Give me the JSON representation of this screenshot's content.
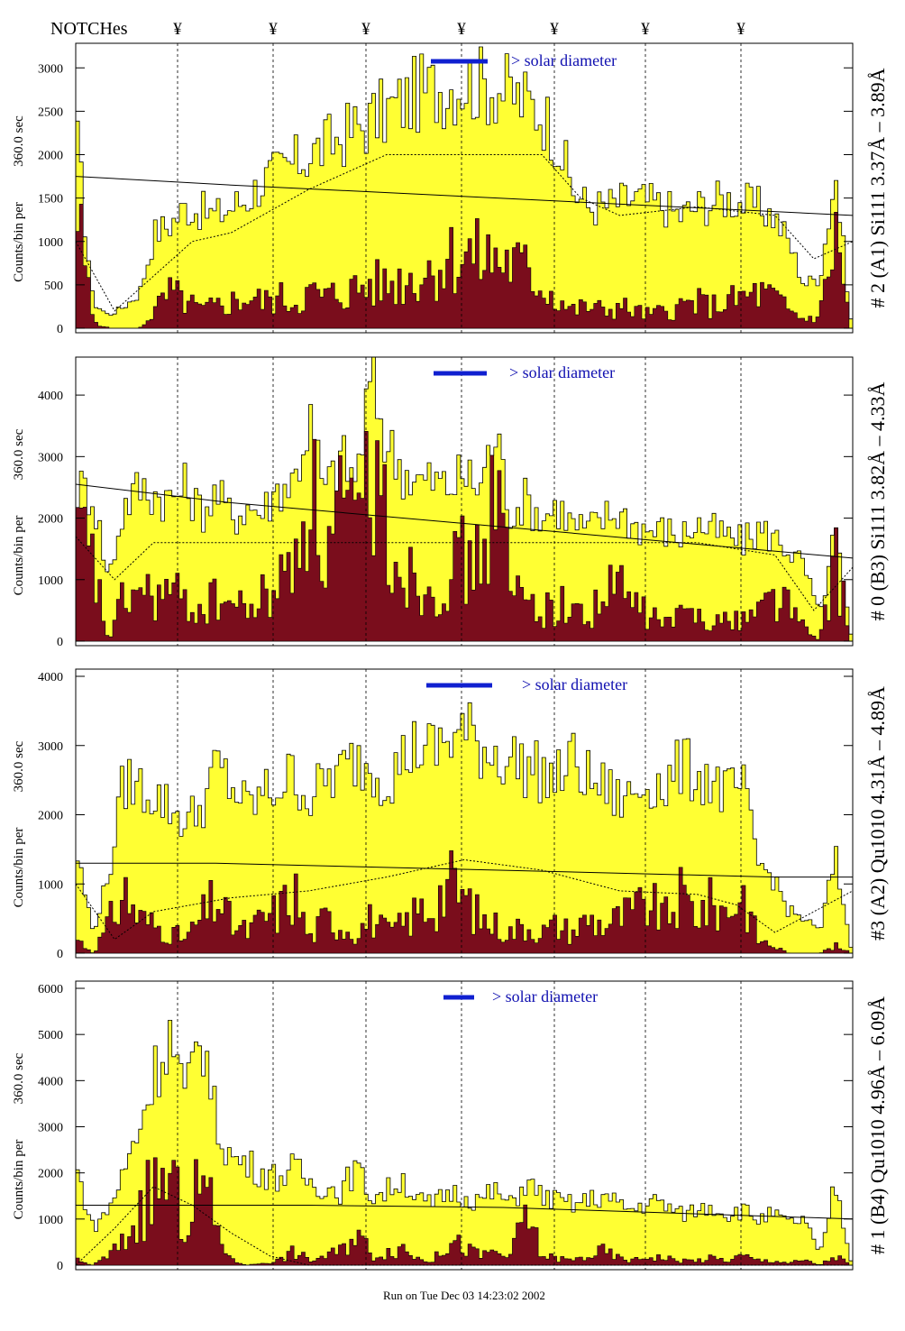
{
  "header": {
    "notches_label": "NOTCHes",
    "notch_mark": "¥",
    "notch_count": 7
  },
  "footer": {
    "run_text": "Run on Tue Dec 03 14:23:02 2002"
  },
  "colors": {
    "total_fill": "#ffff33",
    "component_fill": "#7a0d1c",
    "legend_bar": "#1020d0",
    "legend_text": "#1010b0"
  },
  "chart_data": [
    {
      "type": "bar",
      "panel_label": "# 2 (A1) Si111  3.37Å – 3.89Å",
      "ylabel_main": "Counts/bin per",
      "ylabel_sub": "360.0 sec",
      "ylim": [
        0,
        3200
      ],
      "yticks": [
        0,
        500,
        1000,
        1500,
        2000,
        2500,
        3000
      ],
      "legend_text": "> solar diameter",
      "series": [
        {
          "name": "",
          "x": [
            0,
            0.02,
            0.04,
            0.06,
            0.08,
            0.1,
            0.12,
            0.14,
            0.16,
            0.18,
            0.2,
            0.22,
            0.24,
            0.26,
            0.28,
            0.3,
            0.32,
            0.34,
            0.36,
            0.38,
            0.4,
            0.42,
            0.44,
            0.46,
            0.48,
            0.5,
            0.52,
            0.54,
            0.56,
            0.58,
            0.6,
            0.62,
            0.64,
            0.66,
            0.68,
            0.7,
            0.72,
            0.74,
            0.76,
            0.78,
            0.8,
            0.82,
            0.84,
            0.86,
            0.88,
            0.9,
            0.92,
            0.94,
            0.96,
            0.98,
            1.0
          ],
          "values": [
            2100,
            300,
            150,
            250,
            400,
            1100,
            1200,
            1400,
            1350,
            1300,
            1400,
            1500,
            1700,
            1800,
            1900,
            2000,
            2100,
            2200,
            2300,
            2400,
            2500,
            2600,
            2700,
            2750,
            2800,
            2850,
            2800,
            2800,
            2700,
            2600,
            2500,
            2200,
            1600,
            1400,
            1400,
            1450,
            1500,
            1450,
            1400,
            1300,
            1400,
            1450,
            1500,
            1450,
            1400,
            1300,
            1000,
            500,
            600,
            1800,
            100
          ]
        },
        {
          "name": "",
          "x": [
            0,
            0.02,
            0.04,
            0.06,
            0.08,
            0.1,
            0.12,
            0.14,
            0.16,
            0.18,
            0.2,
            0.22,
            0.24,
            0.26,
            0.28,
            0.3,
            0.32,
            0.34,
            0.36,
            0.38,
            0.4,
            0.42,
            0.44,
            0.46,
            0.48,
            0.5,
            0.52,
            0.54,
            0.56,
            0.58,
            0.6,
            0.62,
            0.64,
            0.66,
            0.68,
            0.7,
            0.72,
            0.74,
            0.76,
            0.78,
            0.8,
            0.82,
            0.84,
            0.86,
            0.88,
            0.9,
            0.92,
            0.94,
            0.96,
            0.98,
            1.0
          ],
          "values": [
            1250,
            100,
            0,
            0,
            0,
            200,
            400,
            300,
            200,
            250,
            300,
            350,
            300,
            350,
            300,
            400,
            350,
            400,
            450,
            500,
            500,
            550,
            600,
            700,
            800,
            850,
            800,
            800,
            750,
            650,
            500,
            350,
            200,
            250,
            200,
            250,
            200,
            150,
            200,
            250,
            300,
            250,
            300,
            350,
            400,
            350,
            200,
            100,
            150,
            1100,
            0
          ]
        }
      ],
      "baseline": {
        "name": "",
        "x": [
          0,
          0.2,
          1.0
        ],
        "values": [
          1750,
          1650,
          1300
        ]
      },
      "model": {
        "name": "",
        "x": [
          0,
          0.05,
          0.1,
          0.15,
          0.2,
          0.3,
          0.4,
          0.5,
          0.6,
          0.65,
          0.7,
          0.8,
          0.9,
          0.95,
          1.0
        ],
        "values": [
          1000,
          200,
          600,
          1000,
          1100,
          1600,
          2000,
          2000,
          2000,
          1500,
          1300,
          1400,
          1300,
          800,
          1000
        ]
      }
    },
    {
      "type": "bar",
      "panel_label": "# 0 (B3) Si111  3.82Å – 4.33Å",
      "ylabel_main": "Counts/bin per",
      "ylabel_sub": "360.0 sec",
      "ylim": [
        0,
        4500
      ],
      "yticks": [
        0,
        1000,
        2000,
        3000,
        4000
      ],
      "legend_text": "> solar diameter",
      "series": [
        {
          "name": "",
          "x": [
            0,
            0.02,
            0.04,
            0.06,
            0.08,
            0.1,
            0.12,
            0.14,
            0.16,
            0.18,
            0.2,
            0.22,
            0.24,
            0.26,
            0.28,
            0.3,
            0.32,
            0.34,
            0.36,
            0.38,
            0.4,
            0.42,
            0.44,
            0.46,
            0.48,
            0.5,
            0.52,
            0.54,
            0.56,
            0.58,
            0.6,
            0.62,
            0.64,
            0.66,
            0.68,
            0.7,
            0.72,
            0.74,
            0.76,
            0.78,
            0.8,
            0.82,
            0.84,
            0.86,
            0.88,
            0.9,
            0.92,
            0.94,
            0.96,
            0.98,
            1.0
          ],
          "values": [
            2500,
            2400,
            1000,
            2200,
            2500,
            2400,
            2300,
            2500,
            2100,
            2400,
            2000,
            2200,
            2100,
            2500,
            2600,
            3600,
            2400,
            3000,
            2600,
            4300,
            3200,
            2800,
            2600,
            2600,
            2500,
            2700,
            2500,
            3400,
            2100,
            2300,
            2000,
            2200,
            1900,
            1800,
            2000,
            2100,
            1900,
            1800,
            1800,
            1700,
            1900,
            1800,
            1700,
            1600,
            1800,
            1700,
            1500,
            1200,
            400,
            1800,
            100
          ]
        },
        {
          "name": "",
          "x": [
            0,
            0.02,
            0.04,
            0.06,
            0.08,
            0.1,
            0.12,
            0.14,
            0.16,
            0.18,
            0.2,
            0.22,
            0.24,
            0.26,
            0.28,
            0.3,
            0.32,
            0.34,
            0.36,
            0.38,
            0.4,
            0.42,
            0.44,
            0.46,
            0.48,
            0.5,
            0.52,
            0.54,
            0.56,
            0.58,
            0.6,
            0.62,
            0.64,
            0.66,
            0.68,
            0.7,
            0.72,
            0.74,
            0.76,
            0.78,
            0.8,
            0.82,
            0.84,
            0.86,
            0.88,
            0.9,
            0.92,
            0.94,
            0.96,
            0.98,
            1.0
          ],
          "values": [
            1800,
            1200,
            0,
            700,
            800,
            700,
            800,
            600,
            500,
            700,
            600,
            500,
            700,
            900,
            1300,
            2800,
            1200,
            2200,
            1500,
            3000,
            1800,
            1200,
            1000,
            900,
            1100,
            1300,
            1200,
            2600,
            800,
            700,
            500,
            600,
            500,
            400,
            700,
            900,
            600,
            400,
            300,
            400,
            500,
            400,
            300,
            400,
            500,
            800,
            600,
            200,
            0,
            1400,
            0
          ]
        }
      ],
      "baseline": {
        "name": "",
        "x": [
          0,
          0.2,
          1.0
        ],
        "values": [
          2550,
          2250,
          1350
        ]
      },
      "model": {
        "name": "",
        "x": [
          0,
          0.05,
          0.1,
          0.2,
          0.3,
          0.4,
          0.5,
          0.6,
          0.7,
          0.8,
          0.9,
          0.95,
          1.0
        ],
        "values": [
          1700,
          1000,
          1600,
          1600,
          1600,
          1600,
          1600,
          1600,
          1600,
          1600,
          1400,
          500,
          1200
        ]
      }
    },
    {
      "type": "bar",
      "panel_label": "#3 (A2) Qu1010  4.31Å – 4.89Å",
      "ylabel_main": "Counts/bin per",
      "ylabel_sub": "360.0 sec",
      "ylim": [
        0,
        4000
      ],
      "yticks": [
        0,
        1000,
        2000,
        3000,
        4000
      ],
      "legend_text": "> solar diameter",
      "series": [
        {
          "name": "",
          "x": [
            0,
            0.02,
            0.04,
            0.06,
            0.08,
            0.1,
            0.12,
            0.14,
            0.16,
            0.18,
            0.2,
            0.22,
            0.24,
            0.26,
            0.28,
            0.3,
            0.32,
            0.34,
            0.36,
            0.38,
            0.4,
            0.42,
            0.44,
            0.46,
            0.48,
            0.5,
            0.52,
            0.54,
            0.56,
            0.58,
            0.6,
            0.62,
            0.64,
            0.66,
            0.68,
            0.7,
            0.72,
            0.74,
            0.76,
            0.78,
            0.8,
            0.82,
            0.84,
            0.86,
            0.88,
            0.9,
            0.92,
            0.94,
            0.96,
            0.98,
            1.0
          ],
          "values": [
            1400,
            300,
            1100,
            2500,
            2400,
            2300,
            2100,
            1900,
            2100,
            2700,
            2400,
            2100,
            2300,
            2400,
            2600,
            2200,
            2500,
            2600,
            2800,
            2700,
            2500,
            2800,
            3000,
            2900,
            3100,
            3200,
            3000,
            2900,
            2800,
            2700,
            2600,
            2500,
            2800,
            2500,
            2400,
            2200,
            2300,
            2500,
            2400,
            2700,
            2600,
            2500,
            2300,
            2400,
            1300,
            1100,
            600,
            500,
            300,
            1400,
            100
          ]
        },
        {
          "name": "",
          "x": [
            0,
            0.02,
            0.04,
            0.06,
            0.08,
            0.1,
            0.12,
            0.14,
            0.16,
            0.18,
            0.2,
            0.22,
            0.24,
            0.26,
            0.28,
            0.3,
            0.32,
            0.34,
            0.36,
            0.38,
            0.4,
            0.42,
            0.44,
            0.46,
            0.48,
            0.5,
            0.52,
            0.54,
            0.56,
            0.58,
            0.6,
            0.62,
            0.64,
            0.66,
            0.68,
            0.7,
            0.72,
            0.74,
            0.76,
            0.78,
            0.8,
            0.82,
            0.84,
            0.86,
            0.88,
            0.9,
            0.92,
            0.94,
            0.96,
            0.98,
            1.0
          ],
          "values": [
            200,
            0,
            400,
            900,
            500,
            400,
            300,
            200,
            500,
            800,
            400,
            300,
            500,
            600,
            900,
            200,
            500,
            400,
            300,
            500,
            300,
            400,
            600,
            700,
            1000,
            800,
            500,
            400,
            300,
            400,
            300,
            400,
            300,
            500,
            400,
            500,
            600,
            700,
            500,
            800,
            600,
            700,
            600,
            900,
            200,
            100,
            0,
            0,
            0,
            100,
            0
          ]
        }
      ],
      "baseline": {
        "name": "",
        "x": [
          0,
          0.18,
          0.9,
          1.0
        ],
        "values": [
          1300,
          1300,
          1100,
          1100
        ]
      },
      "model": {
        "name": "",
        "x": [
          0,
          0.05,
          0.1,
          0.2,
          0.3,
          0.4,
          0.5,
          0.6,
          0.7,
          0.8,
          0.85,
          0.9,
          1.0
        ],
        "values": [
          1000,
          200,
          600,
          800,
          900,
          1100,
          1350,
          1200,
          900,
          850,
          700,
          300,
          900
        ]
      }
    },
    {
      "type": "bar",
      "panel_label": "# 1 (B4) Qu1010 4.96Å – 6.09Å",
      "ylabel_main": "Counts/bin per",
      "ylabel_sub": "360.0 sec",
      "ylim": [
        0,
        6000
      ],
      "yticks": [
        0,
        1000,
        2000,
        3000,
        4000,
        5000,
        6000
      ],
      "legend_text": "> solar diameter",
      "series": [
        {
          "name": "",
          "x": [
            0,
            0.02,
            0.04,
            0.06,
            0.08,
            0.1,
            0.12,
            0.14,
            0.16,
            0.18,
            0.2,
            0.22,
            0.24,
            0.26,
            0.28,
            0.3,
            0.32,
            0.34,
            0.36,
            0.38,
            0.4,
            0.42,
            0.44,
            0.46,
            0.48,
            0.5,
            0.52,
            0.54,
            0.56,
            0.58,
            0.6,
            0.62,
            0.64,
            0.66,
            0.68,
            0.7,
            0.72,
            0.74,
            0.76,
            0.78,
            0.8,
            0.82,
            0.84,
            0.86,
            0.88,
            0.9,
            0.92,
            0.94,
            0.96,
            0.98,
            1.0
          ],
          "values": [
            2000,
            800,
            1200,
            2000,
            3000,
            4200,
            5000,
            3500,
            5200,
            3000,
            2300,
            2200,
            2000,
            1900,
            2100,
            1800,
            1700,
            1600,
            2100,
            1500,
            1600,
            1900,
            1400,
            1300,
            1600,
            1500,
            1400,
            1600,
            1300,
            1800,
            1500,
            1400,
            1300,
            1400,
            1500,
            1300,
            1200,
            1400,
            1300,
            1100,
            1200,
            1300,
            1100,
            1200,
            1000,
            1100,
            900,
            1000,
            200,
            1800,
            100
          ]
        },
        {
          "name": "",
          "x": [
            0,
            0.02,
            0.04,
            0.06,
            0.08,
            0.1,
            0.12,
            0.14,
            0.16,
            0.18,
            0.2,
            0.22,
            0.24,
            0.26,
            0.28,
            0.3,
            0.32,
            0.34,
            0.36,
            0.38,
            0.4,
            0.42,
            0.44,
            0.46,
            0.48,
            0.5,
            0.52,
            0.54,
            0.56,
            0.58,
            0.6,
            0.62,
            0.64,
            0.66,
            0.68,
            0.7,
            0.72,
            0.74,
            0.76,
            0.78,
            0.8,
            0.82,
            0.84,
            0.86,
            0.88,
            0.9,
            0.92,
            0.94,
            0.96,
            0.98,
            1.0
          ],
          "values": [
            100,
            0,
            200,
            500,
            1100,
            1700,
            1800,
            800,
            1900,
            800,
            100,
            0,
            50,
            100,
            300,
            100,
            200,
            300,
            800,
            200,
            300,
            400,
            150,
            100,
            500,
            400,
            200,
            300,
            150,
            1200,
            200,
            150,
            100,
            200,
            300,
            150,
            100,
            200,
            150,
            100,
            100,
            150,
            100,
            200,
            100,
            100,
            50,
            100,
            0,
            200,
            0
          ]
        }
      ],
      "baseline": {
        "name": "",
        "x": [
          0,
          0.3,
          0.55,
          1.0
        ],
        "values": [
          1300,
          1300,
          1250,
          1000
        ]
      },
      "model": {
        "name": "",
        "x": [
          0,
          0.05,
          0.1,
          0.15,
          0.2,
          0.25,
          0.3,
          1.0
        ],
        "values": [
          0,
          800,
          1700,
          1300,
          700,
          200,
          0,
          0
        ]
      }
    }
  ]
}
